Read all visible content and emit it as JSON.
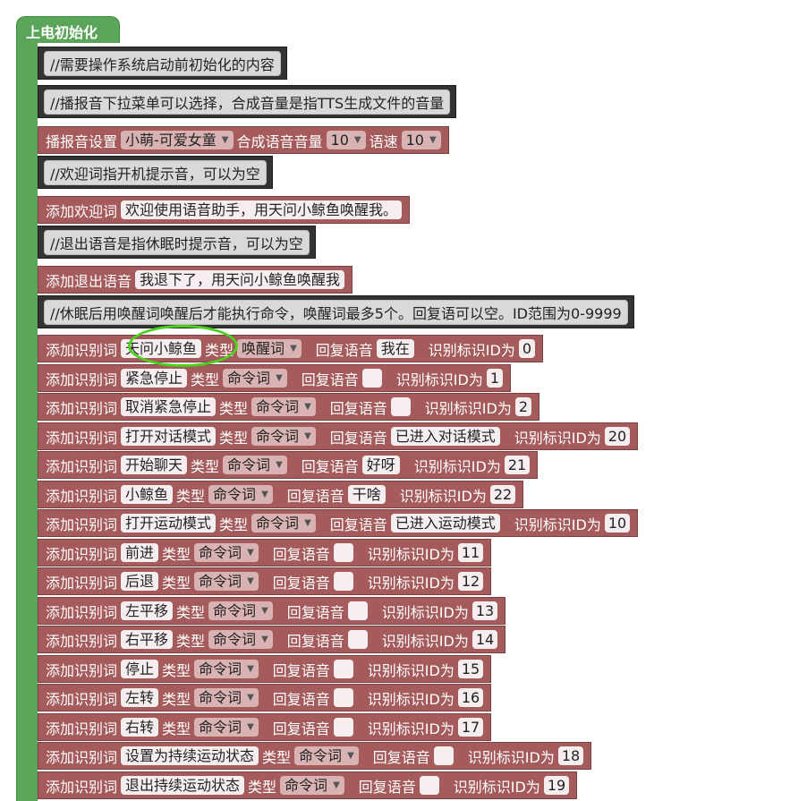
{
  "event": {
    "label": "上电初始化"
  },
  "comments": {
    "c1": "//需要操作系统启动前初始化的内容",
    "c2": "//播报音下拉菜单可以选择，合成音量是指TTS生成文件的音量",
    "c3": "//欢迎词指开机提示音，可以为空",
    "c4": "//退出语音是指休眠时提示音，可以为空",
    "c5": "//休眠后用唤醒词唤醒后才能执行命令，唤醒词最多5个。回复语可以空。ID范围为0-9999"
  },
  "voice_setting": {
    "label": "播报音设置",
    "voice": "小萌-可爱女童",
    "volume_label": "合成语音音量",
    "volume": "10",
    "speed_label": "语速",
    "speed": "10"
  },
  "welcome": {
    "label": "添加欢迎词",
    "text": "欢迎使用语音助手，用天问小鲸鱼唤醒我。"
  },
  "exit_voice": {
    "label": "添加退出语音",
    "text": "我退下了，用天问小鲸鱼唤醒我"
  },
  "labels": {
    "add_word": "添加识别词",
    "type": "类型",
    "reply": "回复语音",
    "id": "识别标识ID为"
  },
  "words": [
    {
      "word": "天问小鲸鱼",
      "type": "唤醒词",
      "reply": "我在",
      "id": "0"
    },
    {
      "word": "紧急停止",
      "type": "命令词",
      "reply": "",
      "id": "1"
    },
    {
      "word": "取消紧急停止",
      "type": "命令词",
      "reply": "",
      "id": "2"
    },
    {
      "word": "打开对话模式",
      "type": "命令词",
      "reply": "已进入对话模式",
      "id": "20"
    },
    {
      "word": "开始聊天",
      "type": "命令词",
      "reply": "好呀",
      "id": "21"
    },
    {
      "word": "小鲸鱼",
      "type": "命令词",
      "reply": "干啥",
      "id": "22"
    },
    {
      "word": "打开运动模式",
      "type": "命令词",
      "reply": "已进入运动模式",
      "id": "10"
    },
    {
      "word": "前进",
      "type": "命令词",
      "reply": "",
      "id": "11"
    },
    {
      "word": "后退",
      "type": "命令词",
      "reply": "",
      "id": "12"
    },
    {
      "word": "左平移",
      "type": "命令词",
      "reply": "",
      "id": "13"
    },
    {
      "word": "右平移",
      "type": "命令词",
      "reply": "",
      "id": "14"
    },
    {
      "word": "停止",
      "type": "命令词",
      "reply": "",
      "id": "15"
    },
    {
      "word": "左转",
      "type": "命令词",
      "reply": "",
      "id": "16"
    },
    {
      "word": "右转",
      "type": "命令词",
      "reply": "",
      "id": "17"
    },
    {
      "word": "设置为持续运动状态",
      "type": "命令词",
      "reply": "",
      "id": "18"
    },
    {
      "word": "退出持续运动状态",
      "type": "命令词",
      "reply": "",
      "id": "19"
    }
  ],
  "colors": {
    "event": "#5ba55b",
    "block": "#a55b5b",
    "comment": "#333333",
    "highlight": "#4bd21e"
  }
}
